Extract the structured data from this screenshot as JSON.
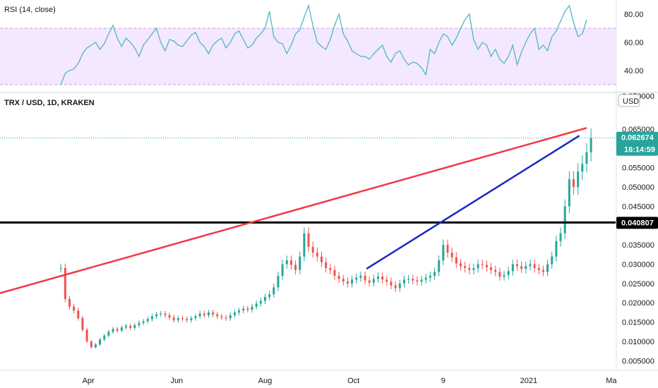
{
  "chart_data": [
    {
      "type": "line",
      "title": "RSI (14, close)",
      "ylim": [
        27,
        88
      ],
      "y_ticks": [
        "80.00",
        "60.00",
        "40.00"
      ],
      "y_tick_values": [
        80,
        60,
        40
      ],
      "band": [
        30,
        70
      ],
      "colors": {
        "line": "#4fb7c6",
        "band_fill": "#f3e8fd",
        "band_line": "#c4a6dc"
      },
      "series": [
        {
          "x_day": [
            0,
            3,
            6,
            9,
            12,
            15,
            18,
            21,
            24,
            27,
            30,
            33,
            36,
            39,
            42,
            45,
            48,
            51,
            54,
            57,
            60,
            63,
            66,
            69,
            72,
            75,
            78,
            81,
            84,
            87,
            90,
            93,
            96,
            99,
            102,
            105,
            108,
            111,
            114,
            117,
            120,
            123,
            126,
            129,
            132,
            135,
            138,
            141,
            144,
            147,
            150,
            153,
            156,
            159,
            162,
            165,
            168,
            171,
            174,
            177,
            180,
            183,
            186,
            189,
            192,
            195,
            198,
            201,
            204,
            207,
            210,
            213,
            216,
            219,
            222,
            225,
            228,
            231,
            234,
            237,
            240,
            243,
            246,
            249,
            252,
            255,
            258,
            261,
            264,
            267,
            270,
            273,
            276,
            279,
            282,
            285,
            288,
            291,
            294,
            297,
            300,
            303,
            306,
            309,
            312,
            315,
            318,
            321,
            324,
            327,
            330,
            333,
            336,
            339,
            342,
            345,
            348,
            351,
            354,
            357,
            360,
            363
          ],
          "values": [
            30,
            38,
            40,
            41,
            45,
            52,
            56,
            58,
            60,
            55,
            59,
            66,
            72,
            63,
            57,
            63,
            60,
            56,
            50,
            58,
            62,
            66,
            70,
            60,
            54,
            62,
            61,
            58,
            57,
            61,
            65,
            67,
            60,
            57,
            52,
            58,
            61,
            63,
            56,
            60,
            66,
            68,
            62,
            56,
            58,
            63,
            66,
            70,
            82,
            64,
            60,
            59,
            52,
            58,
            66,
            69,
            78,
            86,
            72,
            60,
            57,
            55,
            62,
            72,
            80,
            66,
            61,
            54,
            52,
            50,
            50,
            48,
            52,
            55,
            58,
            50,
            46,
            52,
            54,
            48,
            44,
            46,
            45,
            42,
            37,
            55,
            52,
            60,
            66,
            64,
            58,
            63,
            70,
            76,
            80,
            62,
            55,
            60,
            58,
            50,
            55,
            48,
            45,
            50,
            58,
            44,
            53,
            60,
            66,
            70,
            55,
            58,
            54,
            64,
            68,
            75,
            82,
            86,
            74,
            64,
            66,
            76
          ]
        }
      ]
    },
    {
      "type": "bar",
      "title": "TRX / USD, 1D, KRAKEN",
      "ylabel": "USD",
      "ylim": [
        0.0025,
        0.0745
      ],
      "y_ticks": [
        "0.065000",
        "0.060000",
        "0.055000",
        "0.050000",
        "0.045000",
        "0.040000",
        "0.035000",
        "0.030000",
        "0.025000",
        "0.020000",
        "0.015000",
        "0.010000",
        "0.005000"
      ],
      "y_tick_values": [
        0.065,
        0.06,
        0.055,
        0.05,
        0.045,
        0.04,
        0.035,
        0.03,
        0.025,
        0.02,
        0.015,
        0.01,
        0.005
      ],
      "partial_top_tick": "0.070000",
      "x_ticks": [
        "Apr",
        "Jun",
        "Aug",
        "Oct",
        "9",
        "2021",
        "Ma"
      ],
      "x_tick_days": [
        19,
        80,
        141,
        202,
        264,
        323,
        380
      ],
      "x_day_range": [
        -42,
        383
      ],
      "colors": {
        "up": "#26a69a",
        "down": "#ef5350",
        "last_price": "#26a69a",
        "hline": "#000000",
        "red_line": "#f23645",
        "blue_line": "#1c2bbf"
      },
      "last_price_label": "0.062674",
      "countdown_label": "16:14:59",
      "last_price_value": 0.062674,
      "hline_label": "0.040807",
      "hline_value": 0.040807,
      "trendlines": [
        {
          "name": "red",
          "x1_day": -42,
          "y1": 0.0225,
          "x2_day": 363,
          "y2": 0.0653
        },
        {
          "name": "blue",
          "x1_day": 211,
          "y1": 0.0288,
          "x2_day": 358,
          "y2": 0.0633
        }
      ],
      "candles_close": [
        0.029,
        0.021,
        0.019,
        0.018,
        0.016,
        0.013,
        0.01,
        0.0085,
        0.0092,
        0.0105,
        0.0115,
        0.0125,
        0.0132,
        0.0128,
        0.0136,
        0.014,
        0.0135,
        0.0142,
        0.0148,
        0.0152,
        0.0158,
        0.0165,
        0.017,
        0.0172,
        0.0168,
        0.0162,
        0.0155,
        0.016,
        0.0158,
        0.0155,
        0.016,
        0.0165,
        0.0172,
        0.0168,
        0.0175,
        0.017,
        0.0165,
        0.0162,
        0.016,
        0.0168,
        0.0175,
        0.018,
        0.0185,
        0.0182,
        0.019,
        0.0198,
        0.0205,
        0.0215,
        0.0222,
        0.024,
        0.027,
        0.03,
        0.031,
        0.0298,
        0.0285,
        0.032,
        0.038,
        0.0345,
        0.033,
        0.032,
        0.0305,
        0.029,
        0.0285,
        0.027,
        0.0262,
        0.0255,
        0.025,
        0.026,
        0.0265,
        0.027,
        0.0258,
        0.0252,
        0.0262,
        0.0268,
        0.026,
        0.0255,
        0.0245,
        0.0238,
        0.025,
        0.026,
        0.0262,
        0.0258,
        0.0255,
        0.026,
        0.0265,
        0.027,
        0.028,
        0.031,
        0.035,
        0.033,
        0.0318,
        0.0302,
        0.0295,
        0.029,
        0.0285,
        0.029,
        0.03,
        0.0298,
        0.0292,
        0.0285,
        0.028,
        0.0268,
        0.0272,
        0.0282,
        0.03,
        0.0295,
        0.0288,
        0.0295,
        0.03,
        0.029,
        0.0285,
        0.028,
        0.03,
        0.032,
        0.036,
        0.038,
        0.045,
        0.052,
        0.05,
        0.054,
        0.056,
        0.059,
        0.0627
      ],
      "candles_day_step": 3,
      "candles_start_day": 0
    }
  ]
}
